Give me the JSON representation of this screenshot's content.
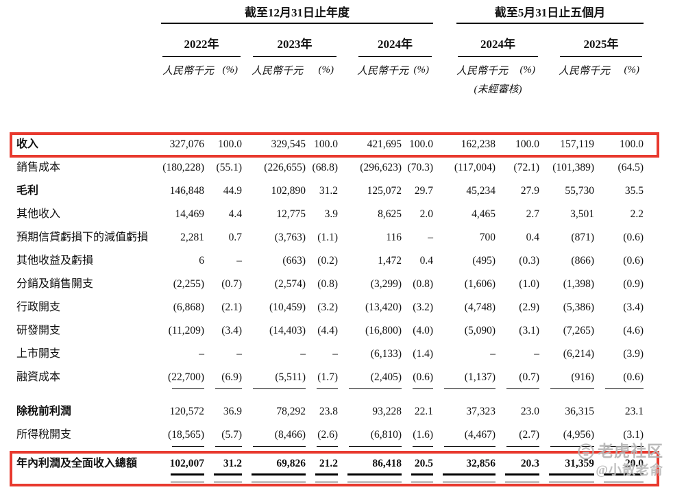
{
  "watermark": {
    "brand": "老虎社区",
    "username": "@小散老俞"
  },
  "table": {
    "highlight_color": "#e8392e",
    "group_headers": [
      {
        "label": "截至12月31日止年度"
      },
      {
        "label": "截至5月31日止五個月"
      }
    ],
    "year_headers": [
      "2022年",
      "2023年",
      "2024年",
      "2024年",
      "2025年"
    ],
    "unit_label": "人民幣千元",
    "percent_label": "(%)",
    "unaudited_note": "(未經審核)",
    "rows": [
      {
        "label": "收入",
        "bold": true,
        "highlight": true,
        "values": [
          "327,076",
          "100.0",
          "329,545",
          "100.0",
          "421,695",
          "100.0",
          "162,238",
          "100.0",
          "157,119",
          "100.0"
        ]
      },
      {
        "label": "銷售成本",
        "values": [
          "(180,228)",
          "(55.1)",
          "(226,655)",
          "(68.8)",
          "(296,623)",
          "(70.3)",
          "(117,004)",
          "(72.1)",
          "(101,389)",
          "(64.5)"
        ]
      },
      {
        "label": "毛利",
        "bold": true,
        "values": [
          "146,848",
          "44.9",
          "102,890",
          "31.2",
          "125,072",
          "29.7",
          "45,234",
          "27.9",
          "55,730",
          "35.5"
        ]
      },
      {
        "label": "其他收入",
        "values": [
          "14,469",
          "4.4",
          "12,775",
          "3.9",
          "8,625",
          "2.0",
          "4,465",
          "2.7",
          "3,501",
          "2.2"
        ]
      },
      {
        "label": "預期信貸虧損下的減值虧損",
        "values": [
          "2,281",
          "0.7",
          "(3,763)",
          "(1.1)",
          "116",
          "–",
          "700",
          "0.4",
          "(871)",
          "(0.6)"
        ]
      },
      {
        "label": "其他收益及虧損",
        "values": [
          "6",
          "–",
          "(663)",
          "(0.2)",
          "1,472",
          "0.4",
          "(495)",
          "(0.3)",
          "(866)",
          "(0.6)"
        ]
      },
      {
        "label": "分銷及銷售開支",
        "values": [
          "(2,255)",
          "(0.7)",
          "(2,574)",
          "(0.8)",
          "(3,299)",
          "(0.8)",
          "(1,606)",
          "(1.0)",
          "(1,398)",
          "(0.9)"
        ]
      },
      {
        "label": "行政開支",
        "values": [
          "(6,868)",
          "(2.1)",
          "(10,459)",
          "(3.2)",
          "(13,420)",
          "(3.2)",
          "(4,748)",
          "(2.9)",
          "(5,386)",
          "(3.4)"
        ]
      },
      {
        "label": "研發開支",
        "values": [
          "(11,209)",
          "(3.4)",
          "(14,403)",
          "(4.4)",
          "(16,800)",
          "(4.0)",
          "(5,090)",
          "(3.1)",
          "(7,265)",
          "(4.6)"
        ]
      },
      {
        "label": "上市開支",
        "values": [
          "–",
          "–",
          "–",
          "–",
          "(6,133)",
          "(1.4)",
          "–",
          "–",
          "(6,214)",
          "(3.9)"
        ]
      },
      {
        "label": "融資成本",
        "underline": "single",
        "spacer_after": 16,
        "values": [
          "(22,700)",
          "(6.9)",
          "(5,511)",
          "(1.7)",
          "(2,405)",
          "(0.6)",
          "(1,137)",
          "(0.7)",
          "(916)",
          "(0.6)"
        ]
      },
      {
        "label": "除稅前利潤",
        "bold": true,
        "values": [
          "120,572",
          "36.9",
          "78,292",
          "23.8",
          "93,228",
          "22.1",
          "37,323",
          "23.0",
          "36,315",
          "23.1"
        ]
      },
      {
        "label": "所得稅開支",
        "underline": "single",
        "spacer_after": 8,
        "values": [
          "(18,565)",
          "(5.7)",
          "(8,466)",
          "(2.6)",
          "(6,810)",
          "(1.6)",
          "(4,467)",
          "(2.7)",
          "(4,956)",
          "(3.1)"
        ]
      },
      {
        "label": "年內利潤及全面收入總額",
        "bold": true,
        "bold_values": true,
        "underline": "double",
        "highlight": true,
        "tall": true,
        "values": [
          "102,007",
          "31.2",
          "69,826",
          "21.2",
          "86,418",
          "20.5",
          "32,856",
          "20.3",
          "31,359",
          "20.0"
        ]
      }
    ]
  }
}
